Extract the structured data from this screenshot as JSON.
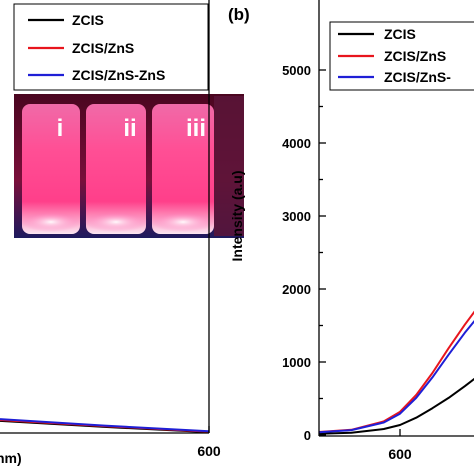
{
  "chart_data": [
    {
      "type": "line",
      "xlabel": "nm)",
      "ylabel": "",
      "x_ticks": [
        600
      ],
      "xlim": [
        400,
        600
      ],
      "ylim": [
        0,
        1000
      ],
      "legend_placement": "top-right",
      "series": [
        {
          "name": "ZCIS",
          "color": "#000000",
          "x": [
            400,
            500,
            600
          ],
          "y": [
            28,
            14,
            2
          ]
        },
        {
          "name": "ZCIS/ZnS",
          "color": "#e8151d",
          "x": [
            400,
            500,
            600
          ],
          "y": [
            30,
            16,
            3
          ]
        },
        {
          "name": "ZCIS/ZnS-ZnS",
          "color": "#1f1fd6",
          "x": [
            400,
            500,
            600
          ],
          "y": [
            32,
            17,
            4
          ]
        }
      ],
      "inset_photo": {
        "vial_labels": [
          "i",
          "ii",
          "iii"
        ]
      }
    },
    {
      "type": "line",
      "panel_label": "(b)",
      "xlabel": "",
      "ylabel": "Intensity (a.u)",
      "y_ticks": [
        0,
        1000,
        2000,
        3000,
        4000,
        5000
      ],
      "x_ticks": [
        600
      ],
      "xlim": [
        550,
        700
      ],
      "ylim": [
        0,
        5500
      ],
      "legend_placement": "top-left",
      "series": [
        {
          "name": "ZCIS",
          "color": "#000000",
          "x": [
            550,
            570,
            590,
            600,
            610,
            620,
            630,
            640,
            650,
            660,
            670
          ],
          "y": [
            30,
            45,
            95,
            150,
            250,
            380,
            520,
            680,
            850,
            1000,
            1080
          ]
        },
        {
          "name": "ZCIS/ZnS",
          "color": "#e8151d",
          "x": [
            550,
            570,
            590,
            600,
            610,
            620,
            630,
            640,
            650,
            660,
            670
          ],
          "y": [
            55,
            85,
            200,
            330,
            560,
            860,
            1200,
            1520,
            1820,
            2070,
            2180
          ]
        },
        {
          "name": "ZCIS/ZnS-",
          "color": "#1f1fd6",
          "x": [
            550,
            570,
            590,
            600,
            610,
            620,
            630,
            640,
            650,
            660,
            670
          ],
          "y": [
            50,
            80,
            185,
            305,
            520,
            800,
            1110,
            1410,
            1680,
            1890,
            1990
          ]
        }
      ]
    }
  ]
}
